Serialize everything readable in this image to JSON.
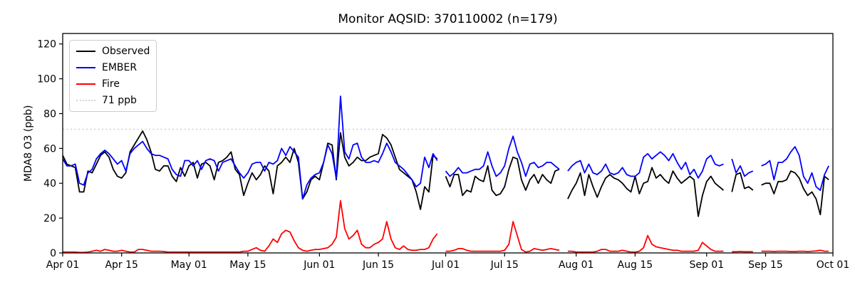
{
  "figure": {
    "kind": "matplotlib-style line chart",
    "n_observations_note": "n=179"
  },
  "chart_data": {
    "type": "line",
    "title": "Monitor AQSID: 370110002 (n=179)",
    "xlabel": "",
    "ylabel": "MDA8 O3 (ppb)",
    "ylim": [
      0,
      126
    ],
    "yticks": [
      0,
      20,
      40,
      60,
      80,
      100,
      120
    ],
    "x_domain_days": 183,
    "x_ticks": [
      {
        "label": "Apr 01",
        "day": 0
      },
      {
        "label": "Apr 15",
        "day": 14
      },
      {
        "label": "May 01",
        "day": 30
      },
      {
        "label": "May 15",
        "day": 44
      },
      {
        "label": "Jun 01",
        "day": 61
      },
      {
        "label": "Jun 15",
        "day": 75
      },
      {
        "label": "Jul 01",
        "day": 91
      },
      {
        "label": "Jul 15",
        "day": 105
      },
      {
        "label": "Aug 01",
        "day": 122
      },
      {
        "label": "Aug 15",
        "day": 136
      },
      {
        "label": "Sep 01",
        "day": 153
      },
      {
        "label": "Sep 15",
        "day": 167
      },
      {
        "label": "Oct 01",
        "day": 183
      }
    ],
    "grid": false,
    "legend_position": "upper left",
    "legend": [
      {
        "label": "Observed",
        "color": "#000000",
        "style": "solid"
      },
      {
        "label": "EMBER",
        "color": "#0000ff",
        "style": "solid"
      },
      {
        "label": "Fire",
        "color": "#ff0000",
        "style": "solid"
      },
      {
        "label": "71 ppb",
        "color": "#d3d3d3",
        "style": "dotted"
      }
    ],
    "ref_line": {
      "label": "71 ppb",
      "value": 71,
      "color": "#d3d3d3",
      "style": "dotted"
    },
    "x_dates": [
      "Apr 01",
      "Apr 02",
      "Apr 03",
      "Apr 04",
      "Apr 05",
      "Apr 06",
      "Apr 07",
      "Apr 08",
      "Apr 09",
      "Apr 10",
      "Apr 11",
      "Apr 12",
      "Apr 13",
      "Apr 14",
      "Apr 15",
      "Apr 16",
      "Apr 17",
      "Apr 18",
      "Apr 19",
      "Apr 20",
      "Apr 21",
      "Apr 22",
      "Apr 23",
      "Apr 24",
      "Apr 25",
      "Apr 26",
      "Apr 27",
      "Apr 28",
      "Apr 29",
      "Apr 30",
      "May 01",
      "May 02",
      "May 03",
      "May 04",
      "May 05",
      "May 06",
      "May 07",
      "May 08",
      "May 09",
      "May 10",
      "May 11",
      "May 12",
      "May 13",
      "May 14",
      "May 15",
      "May 16",
      "May 17",
      "May 18",
      "May 19",
      "May 20",
      "May 21",
      "May 22",
      "May 23",
      "May 24",
      "May 25",
      "May 26",
      "May 27",
      "May 28",
      "May 29",
      "May 30",
      "May 31",
      "Jun 01",
      "Jun 02",
      "Jun 03",
      "Jun 04",
      "Jun 05",
      "Jun 06",
      "Jun 07",
      "Jun 08",
      "Jun 09",
      "Jun 10",
      "Jun 11",
      "Jun 12",
      "Jun 13",
      "Jun 14",
      "Jun 15",
      "Jun 16",
      "Jun 17",
      "Jun 18",
      "Jun 19",
      "Jun 20",
      "Jun 21",
      "Jun 22",
      "Jun 23",
      "Jun 24",
      "Jun 25",
      "Jun 26",
      "Jun 27",
      "Jun 28",
      "Jun 29",
      "Jun 30",
      "Jul 01",
      "Jul 02",
      "Jul 03",
      "Jul 04",
      "Jul 05",
      "Jul 06",
      "Jul 07",
      "Jul 08",
      "Jul 09",
      "Jul 10",
      "Jul 11",
      "Jul 12",
      "Jul 13",
      "Jul 14",
      "Jul 15",
      "Jul 16",
      "Jul 17",
      "Jul 18",
      "Jul 19",
      "Jul 20",
      "Jul 21",
      "Jul 22",
      "Jul 23",
      "Jul 24",
      "Jul 25",
      "Jul 26",
      "Jul 27",
      "Jul 28",
      "Jul 29",
      "Jul 30",
      "Jul 31",
      "Aug 01",
      "Aug 02",
      "Aug 03",
      "Aug 04",
      "Aug 05",
      "Aug 06",
      "Aug 07",
      "Aug 08",
      "Aug 09",
      "Aug 10",
      "Aug 11",
      "Aug 12",
      "Aug 13",
      "Aug 14",
      "Aug 15",
      "Aug 16",
      "Aug 17",
      "Aug 18",
      "Aug 19",
      "Aug 20",
      "Aug 21",
      "Aug 22",
      "Aug 23",
      "Aug 24",
      "Aug 25",
      "Aug 26",
      "Aug 27",
      "Aug 28",
      "Aug 29",
      "Aug 30",
      "Aug 31",
      "Sep 01",
      "Sep 02",
      "Sep 03",
      "Sep 04",
      "Sep 05",
      "Sep 06",
      "Sep 07",
      "Sep 08",
      "Sep 09",
      "Sep 10",
      "Sep 11",
      "Sep 12",
      "Sep 13",
      "Sep 14",
      "Sep 15",
      "Sep 16",
      "Sep 17",
      "Sep 18",
      "Sep 19",
      "Sep 20",
      "Sep 21",
      "Sep 22",
      "Sep 23",
      "Sep 24",
      "Sep 25",
      "Sep 26",
      "Sep 27",
      "Sep 28",
      "Sep 29",
      "Sep 30"
    ],
    "series": [
      {
        "name": "Observed",
        "color": "#000000",
        "values": [
          56,
          51,
          50,
          49,
          35,
          35,
          47,
          46,
          51,
          56,
          58,
          55,
          48,
          44,
          43,
          46,
          58,
          62,
          66,
          70,
          65,
          58,
          48,
          47,
          50,
          50,
          44,
          41,
          49,
          44,
          50,
          52,
          43,
          51,
          52,
          50,
          42,
          52,
          53,
          55,
          58,
          48,
          45,
          33,
          40,
          46,
          42,
          45,
          50,
          47,
          34,
          50,
          52,
          55,
          52,
          60,
          52,
          31,
          35,
          42,
          44,
          42,
          52,
          63,
          62,
          42,
          69,
          55,
          50,
          52,
          55,
          53,
          53,
          55,
          56,
          57,
          68,
          66,
          62,
          55,
          48,
          46,
          44,
          42,
          35,
          25,
          38,
          35,
          56,
          54,
          null,
          44,
          38,
          45,
          45,
          33,
          36,
          35,
          44,
          42,
          41,
          50,
          36,
          33,
          34,
          38,
          48,
          55,
          54,
          42,
          36,
          42,
          45,
          40,
          45,
          42,
          40,
          47,
          48,
          null,
          31,
          36,
          40,
          46,
          33,
          45,
          38,
          32,
          38,
          43,
          45,
          43,
          42,
          40,
          37,
          35,
          44,
          34,
          40,
          41,
          49,
          43,
          45,
          42,
          40,
          47,
          43,
          40,
          42,
          44,
          42,
          21,
          33,
          41,
          44,
          40,
          38,
          36,
          null,
          35,
          45,
          46,
          37,
          38,
          36,
          null,
          39,
          40,
          40,
          34,
          41,
          41,
          42,
          47,
          46,
          43,
          37,
          33,
          35,
          31,
          22,
          44,
          42
        ]
      },
      {
        "name": "EMBER",
        "color": "#0000ff",
        "values": [
          54,
          50,
          50,
          51,
          40,
          39,
          46,
          48,
          54,
          57,
          59,
          57,
          54,
          51,
          53,
          47,
          57,
          60,
          62,
          64,
          60,
          57,
          56,
          56,
          55,
          54,
          48,
          45,
          44,
          53,
          53,
          50,
          53,
          48,
          53,
          54,
          53,
          47,
          52,
          53,
          54,
          50,
          46,
          43,
          46,
          51,
          52,
          52,
          47,
          52,
          51,
          53,
          60,
          56,
          61,
          58,
          55,
          31,
          39,
          43,
          45,
          46,
          52,
          62,
          57,
          43,
          90,
          58,
          54,
          62,
          63,
          55,
          52,
          52,
          53,
          52,
          57,
          63,
          58,
          52,
          50,
          48,
          45,
          42,
          38,
          40,
          55,
          49,
          57,
          53,
          null,
          47,
          44,
          46,
          49,
          46,
          46,
          47,
          48,
          48,
          50,
          58,
          50,
          44,
          46,
          50,
          60,
          67,
          58,
          52,
          44,
          51,
          52,
          49,
          50,
          52,
          52,
          50,
          48,
          null,
          47,
          50,
          52,
          53,
          46,
          51,
          46,
          45,
          47,
          51,
          46,
          45,
          46,
          49,
          45,
          44,
          44,
          46,
          55,
          57,
          54,
          56,
          58,
          56,
          53,
          57,
          52,
          48,
          52,
          45,
          48,
          43,
          47,
          54,
          56,
          51,
          50,
          51,
          null,
          54,
          46,
          50,
          44,
          46,
          47,
          null,
          50,
          51,
          53,
          42,
          52,
          52,
          54,
          58,
          61,
          56,
          44,
          40,
          46,
          38,
          36,
          45,
          50
        ]
      },
      {
        "name": "Fire",
        "color": "#ff0000",
        "values": [
          0.5,
          0.5,
          0.5,
          0.5,
          0.3,
          0.3,
          0.5,
          1,
          1.5,
          1,
          2,
          1.5,
          1,
          1,
          1.5,
          1,
          0.5,
          0.5,
          2,
          2,
          1.5,
          1,
          1,
          1,
          0.8,
          0.5,
          0.5,
          0.5,
          0.5,
          0.5,
          0.5,
          0.5,
          0.5,
          0.5,
          0.5,
          0.5,
          0.5,
          0.5,
          0.5,
          0.5,
          0.5,
          0.5,
          0.5,
          1,
          1,
          2,
          3,
          1.5,
          1,
          4,
          8,
          6,
          11,
          13,
          12,
          7,
          3,
          1.5,
          1,
          1.5,
          2,
          2,
          2.5,
          3,
          5,
          9,
          30,
          14,
          8,
          10,
          13,
          5,
          3,
          3,
          5,
          6,
          8,
          18,
          8,
          3,
          2,
          4,
          2,
          1.5,
          1.5,
          2,
          2,
          3,
          8,
          11,
          null,
          1,
          1,
          1.5,
          2.5,
          2.5,
          1.5,
          1,
          1,
          1,
          1,
          1,
          1,
          1,
          1,
          1.5,
          5,
          18,
          10,
          2,
          0.5,
          1,
          2.5,
          2,
          1.5,
          2,
          2.5,
          2,
          1.5,
          null,
          1,
          1,
          0.5,
          0.5,
          0.5,
          0.5,
          0.5,
          1,
          2,
          2,
          1,
          1,
          1,
          1.5,
          1,
          0.5,
          0.5,
          1,
          3,
          10,
          5,
          3.5,
          3,
          2.5,
          2,
          1.5,
          1.5,
          1,
          1,
          1,
          1,
          1.5,
          6,
          4,
          2,
          1,
          1,
          1,
          null,
          0.7,
          0.7,
          0.8,
          0.7,
          0.7,
          0.7,
          null,
          1,
          1,
          1,
          0.8,
          1,
          1,
          1,
          0.8,
          0.8,
          1,
          1,
          0.8,
          1,
          1.2,
          1.5,
          1,
          1
        ]
      }
    ]
  }
}
